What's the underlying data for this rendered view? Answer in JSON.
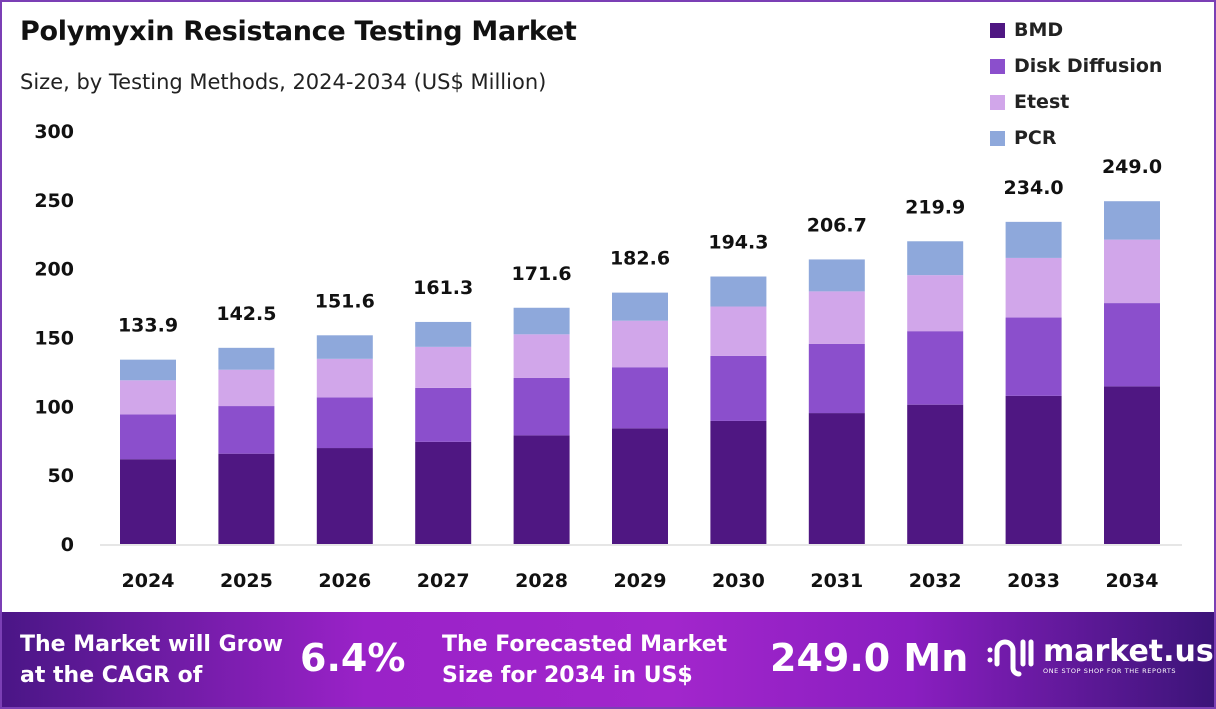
{
  "chart_data": {
    "type": "bar",
    "stacked": true,
    "title": "Polymyxin Resistance Testing Market",
    "subtitle": "Size, by Testing Methods, 2024-2034 (US$ Million)",
    "categories": [
      "2024",
      "2025",
      "2026",
      "2027",
      "2028",
      "2029",
      "2030",
      "2031",
      "2032",
      "2033",
      "2034"
    ],
    "totals": [
      "133.9",
      "142.5",
      "151.6",
      "161.3",
      "171.6",
      "182.6",
      "194.3",
      "206.7",
      "219.9",
      "234.0",
      "249.0"
    ],
    "series": [
      {
        "name": "BMD",
        "color": "#4f1782",
        "values": [
          61.6,
          65.6,
          69.7,
          74.2,
          78.9,
          84.0,
          89.4,
          95.1,
          101.2,
          107.6,
          114.5
        ]
      },
      {
        "name": "Disk Diffusion",
        "color": "#8b4fcc",
        "values": [
          32.5,
          34.6,
          36.8,
          39.2,
          41.7,
          44.4,
          47.2,
          50.2,
          53.4,
          56.9,
          60.5
        ]
      },
      {
        "name": "Etest",
        "color": "#d1a6ea",
        "values": [
          24.8,
          26.4,
          28.0,
          29.8,
          31.7,
          33.8,
          35.9,
          38.2,
          40.7,
          43.3,
          46.1
        ]
      },
      {
        "name": "PCR",
        "color": "#8ea8db",
        "values": [
          15.0,
          15.9,
          17.1,
          18.1,
          19.3,
          20.4,
          21.8,
          23.2,
          24.6,
          26.2,
          27.9
        ]
      }
    ],
    "ylim": [
      0,
      300
    ],
    "yticks": [
      "0",
      "50",
      "100",
      "150",
      "200",
      "250",
      "300"
    ],
    "grid": false,
    "legend": "top-right"
  },
  "footer": {
    "cagr_label_1": "The Market will Grow",
    "cagr_label_2": "at the CAGR of",
    "cagr_value": "6.4%",
    "forecast_label_1": "The Forecasted Market",
    "forecast_label_2": "Size for 2034 in US$",
    "forecast_value": "249.0 Mn",
    "logo_name": "market.us",
    "logo_tagline": "ONE STOP SHOP FOR THE REPORTS"
  }
}
